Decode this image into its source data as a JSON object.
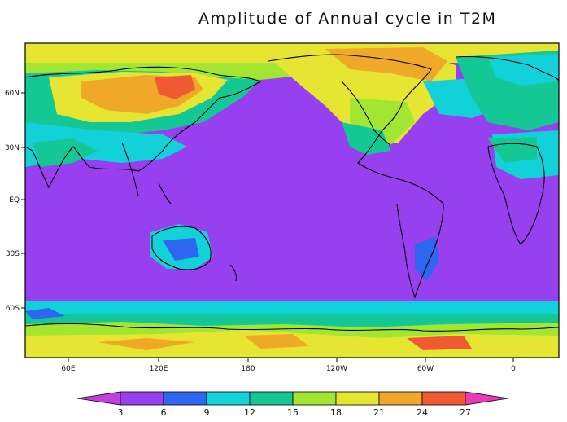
{
  "title": "Amplitude of Annual cycle in T2M",
  "map": {
    "lon_ticks": [
      "60E",
      "120E",
      "180",
      "120W",
      "60W",
      "0"
    ],
    "lat_ticks": [
      "60N",
      "30N",
      "EQ",
      "30S",
      "60S"
    ]
  },
  "colorbar": {
    "levels": [
      "3",
      "6",
      "9",
      "12",
      "15",
      "18",
      "21",
      "24",
      "27"
    ],
    "colors": [
      "#c040e0",
      "#9640f0",
      "#2f66f0",
      "#12d1d8",
      "#14c896",
      "#a2e632",
      "#e6e632",
      "#f0a828",
      "#ef5a32",
      "#e83cb4"
    ]
  }
}
